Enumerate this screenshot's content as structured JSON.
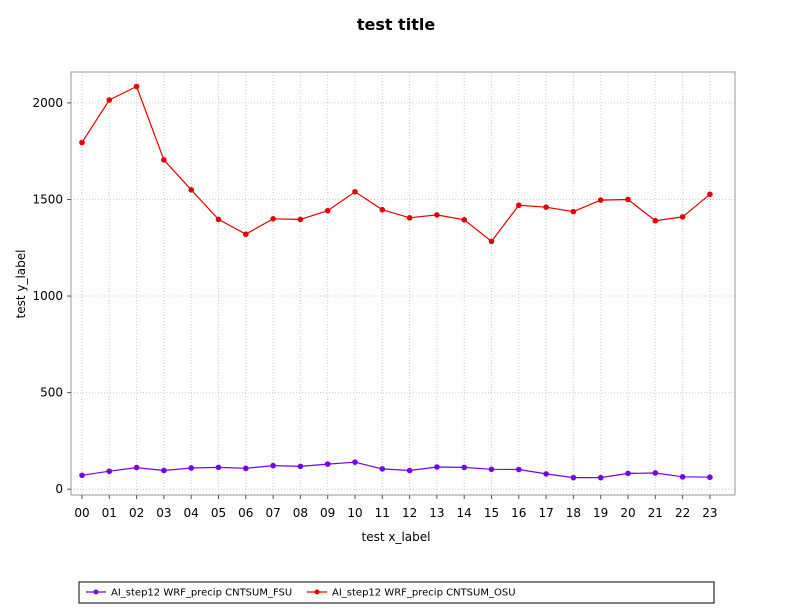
{
  "chart_data": {
    "type": "line",
    "title": "test title",
    "xlabel": "test x_label",
    "ylabel": "test y_label",
    "categories": [
      "00",
      "01",
      "02",
      "03",
      "04",
      "05",
      "06",
      "07",
      "08",
      "09",
      "10",
      "11",
      "12",
      "13",
      "14",
      "15",
      "16",
      "17",
      "18",
      "19",
      "20",
      "21",
      "22",
      "23"
    ],
    "yticks": [
      0,
      500,
      1000,
      1500,
      2000
    ],
    "ylim": [
      -30,
      2160
    ],
    "grid": true,
    "legend_position": "bottom",
    "series": [
      {
        "name": "AI_step12 WRF_precip CNTSUM_FSU",
        "color": "#7a00e6",
        "values": [
          72,
          93,
          112,
          97,
          110,
          113,
          108,
          122,
          118,
          130,
          140,
          105,
          97,
          115,
          113,
          103,
          102,
          79,
          60,
          60,
          82,
          84,
          64,
          62
        ]
      },
      {
        "name": "AI_step12 WRF_precip CNTSUM_OSU",
        "color": "#e60000",
        "values": [
          1795,
          2015,
          2085,
          1705,
          1550,
          1397,
          1320,
          1400,
          1397,
          1442,
          1540,
          1447,
          1405,
          1420,
          1395,
          1283,
          1470,
          1460,
          1437,
          1497,
          1500,
          1390,
          1410,
          1527
        ]
      }
    ]
  }
}
